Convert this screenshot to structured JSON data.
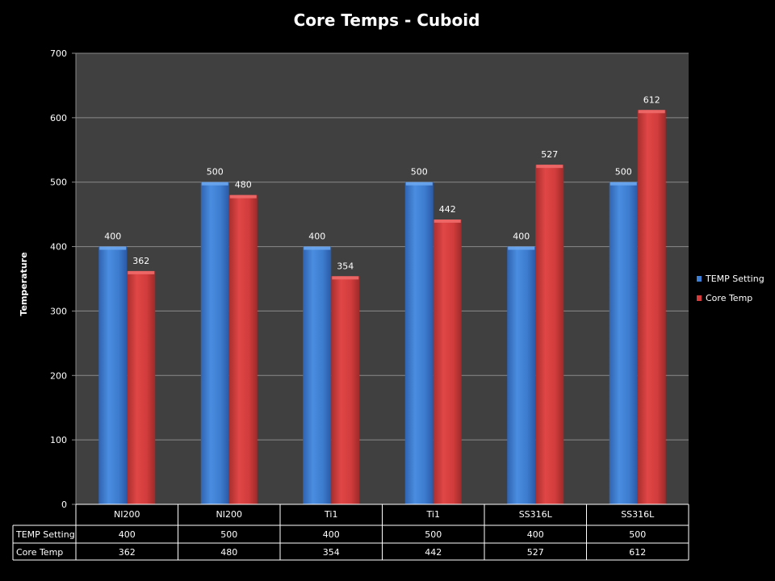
{
  "chart_data": {
    "type": "bar",
    "title": "Core Temps - Cuboid",
    "xlabel": "",
    "ylabel": "Temperature",
    "ylim": [
      0,
      700
    ],
    "yticks": [
      0,
      100,
      200,
      300,
      400,
      500,
      600,
      700
    ],
    "grid": true,
    "legend_position": "right",
    "categories": [
      "NI200",
      "NI200",
      "Ti1",
      "Ti1",
      "SS316L",
      "SS316L"
    ],
    "series": [
      {
        "name": "TEMP Setting",
        "color": "#3b7fd6",
        "values": [
          400,
          500,
          400,
          500,
          400,
          500
        ]
      },
      {
        "name": "Core Temp",
        "color": "#d63b3b",
        "values": [
          362,
          480,
          354,
          442,
          527,
          612
        ]
      }
    ],
    "data_table": true
  }
}
